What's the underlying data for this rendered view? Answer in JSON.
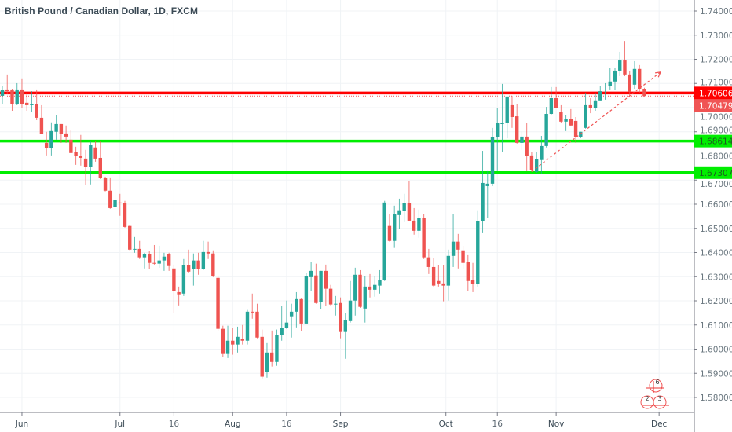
{
  "header": {
    "title": "British Pound / Canadian Dollar, 1D, FXCM"
  },
  "colors": {
    "up": "#26a69a",
    "down": "#ef5350",
    "resistance": "#ff0000",
    "support": "#00ee00",
    "last_price": "#f05454",
    "grid": "#f0f3f6",
    "axis": "#787b86"
  },
  "chart_data": {
    "type": "candlestick",
    "title": "British Pound / Canadian Dollar, 1D, FXCM",
    "ylim": [
      1.575,
      1.745
    ],
    "yticks": [
      "1.74000",
      "1.73000",
      "1.72000",
      "1.71000",
      "1.70000",
      "1.69000",
      "1.68000",
      "1.67000",
      "1.66000",
      "1.65000",
      "1.64000",
      "1.63000",
      "1.62000",
      "1.61000",
      "1.60000",
      "1.59000",
      "1.58000"
    ],
    "xticks": [
      {
        "label": "Jun",
        "index": 4,
        "major": true
      },
      {
        "label": "Jul",
        "index": 24,
        "major": true
      },
      {
        "label": "16",
        "index": 35,
        "major": false
      },
      {
        "label": "Aug",
        "index": 47,
        "major": true
      },
      {
        "label": "16",
        "index": 58,
        "major": false
      },
      {
        "label": "Sep",
        "index": 69,
        "major": true
      },
      {
        "label": "Oct",
        "index": 90.5,
        "major": true
      },
      {
        "label": "16",
        "index": 101,
        "major": false
      },
      {
        "label": "Nov",
        "index": 113,
        "major": true
      },
      {
        "label": "Dec",
        "index": 134,
        "major": true
      }
    ],
    "candles_ohlc": [
      [
        1.7049,
        1.7088,
        1.7016,
        1.7072
      ],
      [
        1.7075,
        1.7137,
        1.7055,
        1.7068
      ],
      [
        1.7075,
        1.7078,
        1.6987,
        1.7016
      ],
      [
        1.7016,
        1.7101,
        1.701,
        1.7075
      ],
      [
        1.7075,
        1.7121,
        1.7,
        1.7016
      ],
      [
        1.702,
        1.7059,
        1.6987,
        1.701
      ],
      [
        1.701,
        1.7068,
        1.6981,
        1.7016
      ],
      [
        1.7016,
        1.7075,
        1.6948,
        1.6958
      ],
      [
        1.6958,
        1.701,
        1.689,
        1.689
      ],
      [
        1.6854,
        1.69,
        1.6802,
        1.6831
      ],
      [
        1.6831,
        1.6939,
        1.6802,
        1.6903
      ],
      [
        1.69,
        1.6968,
        1.6867,
        1.6932
      ],
      [
        1.6932,
        1.6932,
        1.6854,
        1.689
      ],
      [
        1.6893,
        1.6926,
        1.6854,
        1.688
      ],
      [
        1.6867,
        1.6906,
        1.6812,
        1.6812
      ],
      [
        1.6815,
        1.6838,
        1.6763,
        1.6799
      ],
      [
        1.6799,
        1.6887,
        1.676,
        1.6792
      ],
      [
        1.6789,
        1.6825,
        1.6679,
        1.6756
      ],
      [
        1.6756,
        1.6861,
        1.6682,
        1.6844
      ],
      [
        1.6835,
        1.6861,
        1.6776,
        1.6789
      ],
      [
        1.6792,
        1.6861,
        1.6704,
        1.6708
      ],
      [
        1.6708,
        1.6714,
        1.6653,
        1.6656
      ],
      [
        1.6656,
        1.6711,
        1.6581,
        1.6584
      ],
      [
        1.6587,
        1.6662,
        1.6581,
        1.6617
      ],
      [
        1.6607,
        1.6643,
        1.6552,
        1.6604
      ],
      [
        1.6604,
        1.6614,
        1.6503,
        1.6506
      ],
      [
        1.651,
        1.6513,
        1.6409,
        1.6412
      ],
      [
        1.6412,
        1.6464,
        1.6399,
        1.6415
      ],
      [
        1.6415,
        1.6448,
        1.6373,
        1.638
      ],
      [
        1.638,
        1.6399,
        1.6334,
        1.6393
      ],
      [
        1.6393,
        1.6405,
        1.6331,
        1.6357
      ],
      [
        1.6357,
        1.6431,
        1.635,
        1.6354
      ],
      [
        1.6354,
        1.6428,
        1.6337,
        1.6367
      ],
      [
        1.6367,
        1.6399,
        1.6324,
        1.6383
      ],
      [
        1.6393,
        1.6399,
        1.6324,
        1.6344
      ],
      [
        1.6334,
        1.635,
        1.6149,
        1.624
      ],
      [
        1.6236,
        1.6259,
        1.6181,
        1.6227
      ],
      [
        1.623,
        1.6373,
        1.622,
        1.6347
      ],
      [
        1.6347,
        1.6412,
        1.6314,
        1.6321
      ],
      [
        1.6331,
        1.6396,
        1.6263,
        1.6367
      ],
      [
        1.6367,
        1.6399,
        1.6308,
        1.6331
      ],
      [
        1.6331,
        1.6448,
        1.6327,
        1.6402
      ],
      [
        1.6402,
        1.6445,
        1.6373,
        1.6396
      ],
      [
        1.6396,
        1.6409,
        1.6298,
        1.6301
      ],
      [
        1.6295,
        1.6305,
        1.6074,
        1.6084
      ],
      [
        1.6084,
        1.6097,
        1.5967,
        1.598
      ],
      [
        1.598,
        1.6097,
        1.5963,
        1.6035
      ],
      [
        1.6035,
        1.6087,
        1.5977,
        1.6019
      ],
      [
        1.6019,
        1.6093,
        1.5986,
        1.6051
      ],
      [
        1.6041,
        1.61,
        1.6019,
        1.6035
      ],
      [
        1.6035,
        1.6162,
        1.6019,
        1.6155
      ],
      [
        1.6155,
        1.623,
        1.6126,
        1.6152
      ],
      [
        1.6155,
        1.6188,
        1.6045,
        1.6048
      ],
      [
        1.6051,
        1.6081,
        1.5879,
        1.5886
      ],
      [
        1.5905,
        1.6025,
        1.5882,
        1.5986
      ],
      [
        1.5986,
        1.6077,
        1.5928,
        1.5947
      ],
      [
        1.5947,
        1.6081,
        1.5931,
        1.6058
      ],
      [
        1.6058,
        1.6178,
        1.6035,
        1.6087
      ],
      [
        1.6087,
        1.6201,
        1.6084,
        1.611
      ],
      [
        1.6136,
        1.6188,
        1.6048,
        1.6155
      ],
      [
        1.6155,
        1.6236,
        1.609,
        1.6207
      ],
      [
        1.6207,
        1.621,
        1.6074,
        1.6106
      ],
      [
        1.6106,
        1.6314,
        1.6103,
        1.6301
      ],
      [
        1.6298,
        1.636,
        1.624,
        1.6324
      ],
      [
        1.6305,
        1.6354,
        1.6188,
        1.6191
      ],
      [
        1.6194,
        1.6324,
        1.6165,
        1.6324
      ],
      [
        1.6324,
        1.635,
        1.6178,
        1.625
      ],
      [
        1.625,
        1.6266,
        1.6181,
        1.6185
      ],
      [
        1.6188,
        1.622,
        1.6139,
        1.6188
      ],
      [
        1.6191,
        1.6214,
        1.6045,
        1.6071
      ],
      [
        1.6071,
        1.6149,
        1.596,
        1.612
      ],
      [
        1.6116,
        1.6282,
        1.611,
        1.6201
      ],
      [
        1.6201,
        1.6337,
        1.6139,
        1.6308
      ],
      [
        1.6308,
        1.6327,
        1.6171,
        1.6175
      ],
      [
        1.6168,
        1.6301,
        1.611,
        1.6259
      ],
      [
        1.6259,
        1.6311,
        1.6214,
        1.6246
      ],
      [
        1.6246,
        1.6301,
        1.6217,
        1.6266
      ],
      [
        1.6263,
        1.6327,
        1.623,
        1.6285
      ],
      [
        1.6285,
        1.6614,
        1.6282,
        1.6607
      ],
      [
        1.651,
        1.6558,
        1.6445,
        1.6448
      ],
      [
        1.6448,
        1.6594,
        1.6419,
        1.6558
      ],
      [
        1.6555,
        1.6623,
        1.6496,
        1.6575
      ],
      [
        1.6571,
        1.6643,
        1.6526,
        1.6604
      ],
      [
        1.6604,
        1.6695,
        1.6529,
        1.6532
      ],
      [
        1.6532,
        1.6584,
        1.6474,
        1.649
      ],
      [
        1.649,
        1.6578,
        1.6461,
        1.6542
      ],
      [
        1.6542,
        1.6558,
        1.6373,
        1.638
      ],
      [
        1.638,
        1.6415,
        1.6311,
        1.634
      ],
      [
        1.634,
        1.6376,
        1.6259,
        1.6263
      ],
      [
        1.6282,
        1.6347,
        1.6259,
        1.6272
      ],
      [
        1.6272,
        1.6347,
        1.6198,
        1.6263
      ],
      [
        1.6263,
        1.6412,
        1.6201,
        1.6386
      ],
      [
        1.6386,
        1.6561,
        1.634,
        1.6445
      ],
      [
        1.6445,
        1.6477,
        1.6334,
        1.6412
      ],
      [
        1.6409,
        1.6428,
        1.6334,
        1.6357
      ],
      [
        1.636,
        1.6389,
        1.624,
        1.6282
      ],
      [
        1.6285,
        1.6357,
        1.6236,
        1.6269
      ],
      [
        1.6269,
        1.6575,
        1.6259,
        1.6529
      ],
      [
        1.6529,
        1.6821,
        1.648,
        1.6688
      ],
      [
        1.6675,
        1.6737,
        1.6542,
        1.6685
      ],
      [
        1.6685,
        1.6916,
        1.6675,
        1.6877
      ],
      [
        1.6877,
        1.7,
        1.6737,
        1.6935
      ],
      [
        1.6935,
        1.7098,
        1.6818,
        1.6935
      ],
      [
        1.6935,
        1.7046,
        1.6873,
        1.7046
      ],
      [
        1.701,
        1.7049,
        1.6916,
        1.6961
      ],
      [
        1.6964,
        1.7013,
        1.6851,
        1.6854
      ],
      [
        1.6854,
        1.69,
        1.6825,
        1.688
      ],
      [
        1.688,
        1.6935,
        1.6737,
        1.6799
      ],
      [
        1.6802,
        1.6815,
        1.6734,
        1.6743
      ],
      [
        1.6734,
        1.6818,
        1.673,
        1.6786
      ],
      [
        1.6783,
        1.6883,
        1.6724,
        1.6841
      ],
      [
        1.6841,
        1.7003,
        1.6835,
        1.6974
      ],
      [
        1.6974,
        1.7085,
        1.6971,
        1.7039
      ],
      [
        1.7039,
        1.7085,
        1.6997,
        1.7
      ],
      [
        1.6981,
        1.701,
        1.6935,
        1.6942
      ],
      [
        1.6942,
        1.6968,
        1.6903,
        1.6952
      ],
      [
        1.6952,
        1.6994,
        1.6922,
        1.6926
      ],
      [
        1.6945,
        1.6961,
        1.6854,
        1.6877
      ],
      [
        1.6877,
        1.69,
        1.6873,
        1.69
      ],
      [
        1.6916,
        1.7062,
        1.6913,
        1.701
      ],
      [
        1.701,
        1.7039,
        1.6977,
        1.7
      ],
      [
        1.7,
        1.7062,
        1.6987,
        1.703
      ],
      [
        1.703,
        1.7091,
        1.703,
        1.7068
      ],
      [
        1.7062,
        1.7101,
        1.7033,
        1.7062
      ],
      [
        1.7091,
        1.7163,
        1.7075,
        1.7108
      ],
      [
        1.7108,
        1.7163,
        1.7075,
        1.7153
      ],
      [
        1.7153,
        1.7231,
        1.713,
        1.7195
      ],
      [
        1.7195,
        1.7276,
        1.713,
        1.7137
      ],
      [
        1.7137,
        1.715,
        1.7049,
        1.7065
      ],
      [
        1.7095,
        1.7192,
        1.7078,
        1.716
      ],
      [
        1.716,
        1.7176,
        1.7062,
        1.7078
      ],
      [
        1.7078,
        1.7082,
        1.7045,
        1.7048
      ]
    ],
    "horizontal_lines": [
      {
        "name": "resistance",
        "price": 1.70606,
        "label": "1.70606",
        "color": "#ff0000"
      },
      {
        "name": "support-upper",
        "price": 1.68614,
        "label": "1.68614",
        "color": "#00ee00"
      },
      {
        "name": "support-lower",
        "price": 1.67307,
        "label": "1.67307",
        "color": "#00ee00"
      }
    ],
    "last_price": {
      "price": 1.70479,
      "label": "1.70479"
    },
    "trend_line": {
      "start_index": 108,
      "start_price": 1.6735,
      "end_index": 134.3,
      "end_price": 1.7147,
      "style": "dashed-arrow"
    },
    "events": [
      {
        "label": "6"
      },
      {
        "label": "2"
      },
      {
        "label": "3"
      }
    ]
  }
}
